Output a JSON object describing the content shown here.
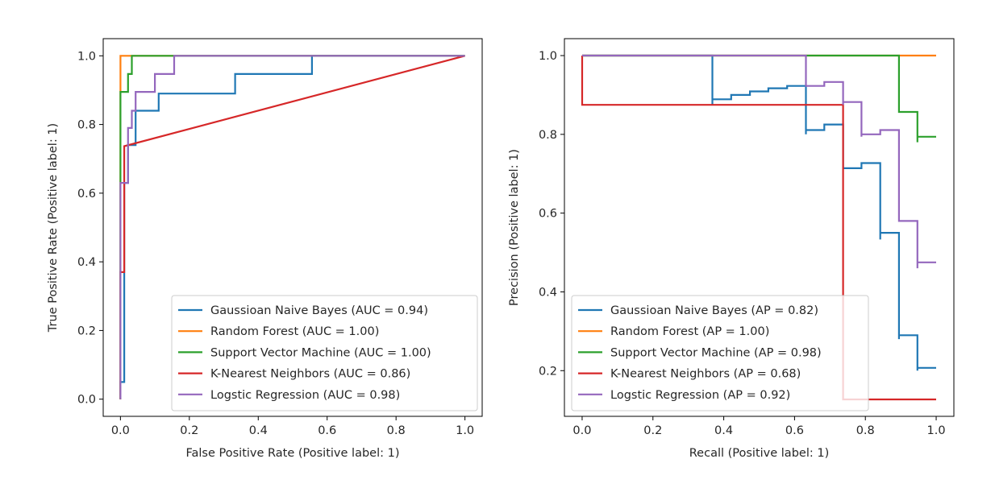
{
  "chart_data": [
    {
      "type": "line",
      "id": "roc",
      "xlabel": "False Positive Rate (Positive label: 1)",
      "ylabel": "True Positive Rate (Positive label: 1)",
      "xlim": [
        -0.05,
        1.05
      ],
      "ylim": [
        -0.05,
        1.05
      ],
      "xticks": [
        0.0,
        0.2,
        0.4,
        0.6,
        0.8,
        1.0
      ],
      "yticks": [
        0.0,
        0.2,
        0.4,
        0.6,
        0.8,
        1.0
      ],
      "xtick_labels": [
        "0.0",
        "0.2",
        "0.4",
        "0.6",
        "0.8",
        "1.0"
      ],
      "ytick_labels": [
        "0.0",
        "0.2",
        "0.4",
        "0.6",
        "0.8",
        "1.0"
      ],
      "grid": false,
      "legend_position": "lower-right",
      "series": [
        {
          "name": "Gaussioan Naive Bayes (AUC = 0.94)",
          "color": "#1f77b4",
          "points": [
            [
              0.0,
              0.0
            ],
            [
              0.0,
              0.05
            ],
            [
              0.011,
              0.05
            ],
            [
              0.011,
              0.63
            ],
            [
              0.022,
              0.63
            ],
            [
              0.022,
              0.74
            ],
            [
              0.044,
              0.74
            ],
            [
              0.044,
              0.84
            ],
            [
              0.067,
              0.84
            ],
            [
              0.067,
              0.84
            ],
            [
              0.111,
              0.84
            ],
            [
              0.111,
              0.89
            ],
            [
              0.333,
              0.89
            ],
            [
              0.333,
              0.947
            ],
            [
              0.556,
              0.947
            ],
            [
              0.556,
              1.0
            ],
            [
              1.0,
              1.0
            ]
          ]
        },
        {
          "name": "Random Forest (AUC = 1.00)",
          "color": "#ff7f0e",
          "points": [
            [
              0.0,
              0.0
            ],
            [
              0.0,
              1.0
            ],
            [
              1.0,
              1.0
            ]
          ]
        },
        {
          "name": "Support Vector Machine (AUC = 1.00)",
          "color": "#2ca02c",
          "points": [
            [
              0.0,
              0.0
            ],
            [
              0.0,
              0.895
            ],
            [
              0.022,
              0.895
            ],
            [
              0.022,
              0.947
            ],
            [
              0.033,
              0.947
            ],
            [
              0.033,
              1.0
            ],
            [
              1.0,
              1.0
            ]
          ]
        },
        {
          "name": "K-Nearest Neighbors (AUC = 0.86)",
          "color": "#d62728",
          "points": [
            [
              0.0,
              0.0
            ],
            [
              0.0,
              0.37
            ],
            [
              0.011,
              0.37
            ],
            [
              0.011,
              0.737
            ],
            [
              1.0,
              1.0
            ]
          ]
        },
        {
          "name": "Logstic Regression (AUC = 0.98)",
          "color": "#9467bd",
          "points": [
            [
              0.0,
              0.0
            ],
            [
              0.0,
              0.63
            ],
            [
              0.022,
              0.63
            ],
            [
              0.022,
              0.79
            ],
            [
              0.033,
              0.79
            ],
            [
              0.033,
              0.84
            ],
            [
              0.044,
              0.84
            ],
            [
              0.044,
              0.895
            ],
            [
              0.1,
              0.895
            ],
            [
              0.1,
              0.947
            ],
            [
              0.156,
              0.947
            ],
            [
              0.156,
              1.0
            ],
            [
              1.0,
              1.0
            ]
          ]
        }
      ]
    },
    {
      "type": "line",
      "id": "pr",
      "xlabel": "Recall (Positive label: 1)",
      "ylabel": "Precision (Positive label: 1)",
      "xlim": [
        -0.05,
        1.05
      ],
      "ylim": [
        0.084,
        1.043
      ],
      "xticks": [
        0.0,
        0.2,
        0.4,
        0.6,
        0.8,
        1.0
      ],
      "yticks": [
        0.2,
        0.4,
        0.6,
        0.8,
        1.0
      ],
      "xtick_labels": [
        "0.0",
        "0.2",
        "0.4",
        "0.6",
        "0.8",
        "1.0"
      ],
      "ytick_labels": [
        "0.2",
        "0.4",
        "0.6",
        "0.8",
        "1.0"
      ],
      "grid": false,
      "legend_position": "lower-left",
      "series": [
        {
          "name": "Gaussioan Naive Bayes (AP = 0.82)",
          "color": "#1f77b4",
          "points": [
            [
              0.0,
              1.0
            ],
            [
              0.368,
              1.0
            ],
            [
              0.368,
              0.875
            ],
            [
              0.368,
              0.889
            ],
            [
              0.421,
              0.889
            ],
            [
              0.421,
              0.9
            ],
            [
              0.474,
              0.9
            ],
            [
              0.474,
              0.909
            ],
            [
              0.526,
              0.909
            ],
            [
              0.526,
              0.917
            ],
            [
              0.579,
              0.917
            ],
            [
              0.579,
              0.923
            ],
            [
              0.632,
              0.923
            ],
            [
              0.632,
              0.8
            ],
            [
              0.632,
              0.811
            ],
            [
              0.684,
              0.811
            ],
            [
              0.684,
              0.825
            ],
            [
              0.737,
              0.825
            ],
            [
              0.737,
              0.714
            ],
            [
              0.789,
              0.714
            ],
            [
              0.789,
              0.727
            ],
            [
              0.842,
              0.727
            ],
            [
              0.842,
              0.533
            ],
            [
              0.842,
              0.55
            ],
            [
              0.895,
              0.55
            ],
            [
              0.895,
              0.28
            ],
            [
              0.895,
              0.29
            ],
            [
              0.947,
              0.29
            ],
            [
              0.947,
              0.2
            ],
            [
              0.947,
              0.207
            ],
            [
              1.0,
              0.207
            ]
          ]
        },
        {
          "name": "Random Forest (AP = 1.00)",
          "color": "#ff7f0e",
          "points": [
            [
              0.0,
              1.0
            ],
            [
              1.0,
              1.0
            ]
          ]
        },
        {
          "name": "Support Vector Machine (AP = 0.98)",
          "color": "#2ca02c",
          "points": [
            [
              0.0,
              1.0
            ],
            [
              0.895,
              1.0
            ],
            [
              0.895,
              0.857
            ],
            [
              0.947,
              0.857
            ],
            [
              0.947,
              0.78
            ],
            [
              0.947,
              0.794
            ],
            [
              1.0,
              0.794
            ]
          ]
        },
        {
          "name": "K-Nearest Neighbors (AP = 0.68)",
          "color": "#d62728",
          "points": [
            [
              0.0,
              1.0
            ],
            [
              0.0,
              0.875
            ],
            [
              0.737,
              0.875
            ],
            [
              0.737,
              0.127
            ],
            [
              1.0,
              0.127
            ]
          ]
        },
        {
          "name": "Logstic Regression (AP = 0.92)",
          "color": "#9467bd",
          "points": [
            [
              0.0,
              1.0
            ],
            [
              0.632,
              1.0
            ],
            [
              0.632,
              0.923
            ],
            [
              0.684,
              0.923
            ],
            [
              0.684,
              0.933
            ],
            [
              0.737,
              0.933
            ],
            [
              0.737,
              0.875
            ],
            [
              0.737,
              0.882
            ],
            [
              0.789,
              0.882
            ],
            [
              0.789,
              0.794
            ],
            [
              0.789,
              0.8
            ],
            [
              0.842,
              0.8
            ],
            [
              0.842,
              0.811
            ],
            [
              0.895,
              0.811
            ],
            [
              0.895,
              0.58
            ],
            [
              0.947,
              0.58
            ],
            [
              0.947,
              0.46
            ],
            [
              0.947,
              0.475
            ],
            [
              1.0,
              0.475
            ]
          ]
        }
      ]
    }
  ]
}
